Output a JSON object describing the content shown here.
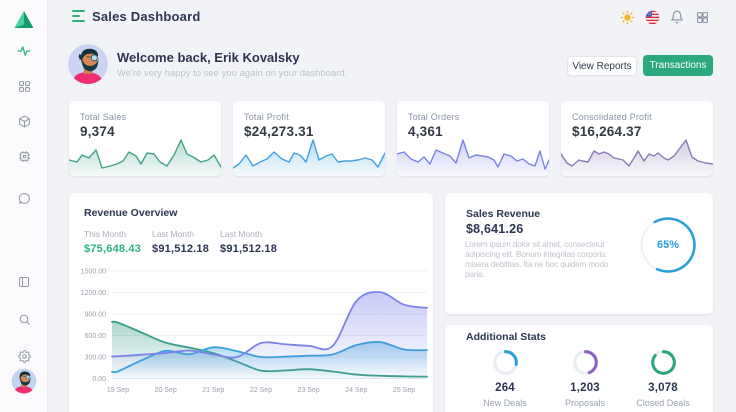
{
  "app": {
    "title": "Sales Dashboard"
  },
  "colors": {
    "accent_green": "#2ab57d",
    "blue": "#2d9fd8",
    "purple": "#8a63c0",
    "page_bg": "#f2f3f6",
    "card_bg": "#ffffff",
    "heading": "#2c3652",
    "muted": "#8a93a6"
  },
  "sidebar": {
    "logo": "triangle-logo",
    "top_items": [
      {
        "icon": "activity-icon",
        "active": true
      },
      {
        "icon": "grid-icon",
        "active": false
      },
      {
        "icon": "cube-icon",
        "active": false
      },
      {
        "icon": "chip-icon",
        "active": false
      },
      {
        "icon": "chat-icon",
        "active": false
      }
    ],
    "bottom_items": [
      {
        "icon": "book-icon"
      },
      {
        "icon": "search-icon"
      },
      {
        "icon": "gear-icon"
      }
    ],
    "user": "avatar"
  },
  "header": {
    "icons": [
      "sun-icon",
      "us-flag-icon",
      "bell-icon",
      "apps-icon"
    ]
  },
  "welcome": {
    "title": "Welcome back, Erik Kovalsky",
    "subtitle": "We're very happy to see you again on your dashboard.",
    "buttons": {
      "secondary": "View Reports",
      "primary": "Transactions"
    }
  },
  "stat_cards": [
    {
      "label": "Total Sales",
      "value": "9,374",
      "color": "#41a38a",
      "fill": "#b9e2d4",
      "spark": [
        [
          0,
          31
        ],
        [
          8,
          33
        ],
        [
          13,
          26
        ],
        [
          20,
          29
        ],
        [
          27,
          21
        ],
        [
          33,
          39
        ],
        [
          41,
          37
        ],
        [
          48,
          35
        ],
        [
          54,
          32
        ],
        [
          60,
          23
        ],
        [
          67,
          27
        ],
        [
          72,
          35
        ],
        [
          78,
          24
        ],
        [
          85,
          25
        ],
        [
          91,
          33
        ],
        [
          98,
          37
        ],
        [
          105,
          26
        ],
        [
          112,
          11
        ],
        [
          118,
          25
        ],
        [
          124,
          28
        ],
        [
          132,
          33
        ],
        [
          139,
          31
        ],
        [
          145,
          26
        ],
        [
          152,
          38
        ]
      ]
    },
    {
      "label": "Total Profit",
      "value": "$24,273.31",
      "color": "#41a1e0",
      "fill": "#bedff5",
      "spark": [
        [
          0,
          39
        ],
        [
          6,
          35
        ],
        [
          13,
          26
        ],
        [
          20,
          37
        ],
        [
          27,
          33
        ],
        [
          34,
          30
        ],
        [
          41,
          23
        ],
        [
          49,
          30
        ],
        [
          56,
          33
        ],
        [
          61,
          24
        ],
        [
          67,
          26
        ],
        [
          73,
          33
        ],
        [
          80,
          11
        ],
        [
          86,
          31
        ],
        [
          93,
          27
        ],
        [
          99,
          25
        ],
        [
          105,
          33
        ],
        [
          112,
          32
        ],
        [
          118,
          32
        ],
        [
          125,
          31
        ],
        [
          132,
          29
        ],
        [
          139,
          31
        ],
        [
          145,
          38
        ],
        [
          152,
          24
        ]
      ]
    },
    {
      "label": "Total Orders",
      "value": "4,361",
      "color": "#7a82ea",
      "fill": "#cdd1f7",
      "spark": [
        [
          0,
          25
        ],
        [
          7,
          23
        ],
        [
          14,
          30
        ],
        [
          21,
          33
        ],
        [
          27,
          28
        ],
        [
          33,
          35
        ],
        [
          39,
          21
        ],
        [
          48,
          25
        ],
        [
          53,
          27
        ],
        [
          59,
          34
        ],
        [
          66,
          11
        ],
        [
          72,
          29
        ],
        [
          79,
          26
        ],
        [
          85,
          27
        ],
        [
          91,
          28
        ],
        [
          97,
          31
        ],
        [
          101,
          38
        ],
        [
          107,
          25
        ],
        [
          114,
          27
        ],
        [
          120,
          32
        ],
        [
          126,
          30
        ],
        [
          132,
          35
        ],
        [
          138,
          37
        ],
        [
          143,
          22
        ],
        [
          148,
          40
        ],
        [
          152,
          31
        ]
      ]
    },
    {
      "label": "Consolidated Profit",
      "value": "$16,264.37",
      "color": "#8a7ab2",
      "fill": "#d4cde2",
      "spark": [
        [
          0,
          25
        ],
        [
          6,
          34
        ],
        [
          11,
          37
        ],
        [
          18,
          31
        ],
        [
          21,
          32
        ],
        [
          27,
          33
        ],
        [
          33,
          22
        ],
        [
          38,
          25
        ],
        [
          43,
          23
        ],
        [
          48,
          25
        ],
        [
          53,
          29
        ],
        [
          58,
          30
        ],
        [
          62,
          31
        ],
        [
          68,
          37
        ],
        [
          73,
          29
        ],
        [
          77,
          22
        ],
        [
          83,
          32
        ],
        [
          88,
          25
        ],
        [
          93,
          27
        ],
        [
          97,
          24
        ],
        [
          103,
          29
        ],
        [
          107,
          31
        ],
        [
          113,
          27
        ],
        [
          119,
          19
        ],
        [
          125,
          11
        ],
        [
          131,
          28
        ],
        [
          137,
          32
        ],
        [
          145,
          34
        ],
        [
          152,
          35
        ]
      ]
    }
  ],
  "revenue": {
    "title": "Revenue Overview",
    "stats": [
      {
        "label": "This Month",
        "value": "$75,648.43"
      },
      {
        "label": "Last Month",
        "value": "$91,512.18"
      },
      {
        "label": "Last Month",
        "value": "$91,512.18"
      }
    ],
    "chart_data": {
      "type": "area",
      "title": "Revenue Overview",
      "x_labels": [
        "19 Sep",
        "20 Sep",
        "21 Sep",
        "22 Sep",
        "23 Sep",
        "24 Sep",
        "25 Sep"
      ],
      "y_ticks": [
        "0.00",
        "300.00",
        "600.00",
        "900.00",
        "1200.00",
        "1500.00"
      ],
      "ylim": [
        0,
        1500
      ],
      "grid": true,
      "smooth": true,
      "series": [
        {
          "name": "green",
          "color": "#3c9e8a",
          "values": [
            780,
            640,
            500,
            430,
            355,
            235,
            110,
            112,
            130,
            98,
            55,
            38,
            30
          ],
          "edge_start": 790,
          "edge_end": 26
        },
        {
          "name": "blue",
          "color": "#38a0dd",
          "values": [
            100,
            255,
            385,
            338,
            435,
            380,
            300,
            305,
            318,
            335,
            465,
            508,
            405
          ],
          "edge_start": 95,
          "edge_end": 395
        },
        {
          "name": "purple",
          "color": "#7c83ea",
          "values": [
            310,
            332,
            355,
            390,
            335,
            300,
            495,
            478,
            455,
            452,
            1080,
            1205,
            1030
          ],
          "edge_start": 308,
          "edge_end": 985
        }
      ]
    }
  },
  "sales_revenue": {
    "title": "Sales Revenue",
    "value": "$8,641.26",
    "description": "Lorem ipsum dolor sit amet, consectetur\nadipiscing elit. Bonum integritas corporis:\nmisera debilitas. Ita ne hoc quidem modo\nparia.",
    "percent_label": "65%",
    "percent": 65,
    "color": "#2d9fd8"
  },
  "additional_stats": {
    "title": "Additional Stats",
    "items": [
      {
        "value": "264",
        "label": "New Deals",
        "sweep": 100,
        "color": "#2d9fd8"
      },
      {
        "value": "1,203",
        "label": "Proposals",
        "sweep": 160,
        "color": "#8a63c0"
      },
      {
        "value": "3,078",
        "label": "Closed Deals",
        "sweep": 310,
        "color": "#2aa77c"
      }
    ]
  }
}
